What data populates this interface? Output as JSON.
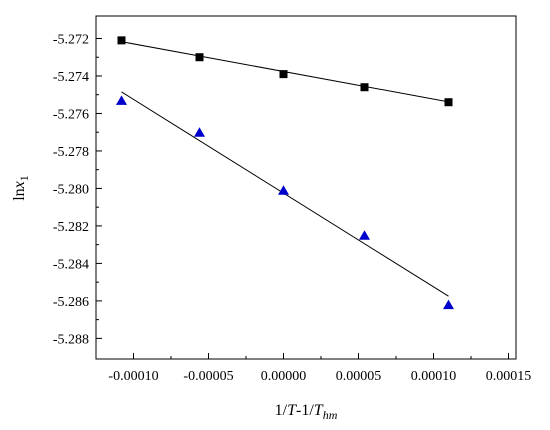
{
  "chart_data": {
    "type": "scatter",
    "xlabel": {
      "prefix": "1/",
      "T1": "T",
      "mid": "-1/",
      "T2": "T",
      "sub": "hm"
    },
    "ylabel": {
      "main": "ln",
      "var": "x",
      "sub": "1"
    },
    "xlim": [
      -0.000125,
      0.000155
    ],
    "ylim": [
      -5.2891,
      -5.2708
    ],
    "x_ticks": [
      -0.0001,
      -5e-05,
      0.0,
      5e-05,
      0.0001,
      0.00015
    ],
    "x_tick_labels": [
      "-0.00010",
      "-0.00005",
      "0.00000",
      "0.00005",
      "0.00010",
      "0.00015"
    ],
    "y_ticks": [
      -5.272,
      -5.274,
      -5.276,
      -5.278,
      -5.28,
      -5.282,
      -5.284,
      -5.286,
      -5.288
    ],
    "y_tick_labels": [
      "-5.272",
      "-5.274",
      "-5.276",
      "-5.278",
      "-5.280",
      "-5.282",
      "-5.284",
      "-5.286",
      "-5.288"
    ],
    "series": [
      {
        "marker": "square",
        "color": "#000000",
        "x": [
          -0.000108,
          -5.6e-05,
          0.0,
          5.4e-05,
          0.00011
        ],
        "y": [
          -5.2721,
          -5.273,
          -5.2739,
          -5.2746,
          -5.2754
        ],
        "fit": [
          [
            -0.000108,
            -5.27217
          ],
          [
            0.00011,
            -5.27538
          ]
        ]
      },
      {
        "marker": "triangle",
        "color": "#0000cc",
        "x": [
          -0.000108,
          -5.6e-05,
          0.0,
          5.4e-05,
          0.00011
        ],
        "y": [
          -5.2753,
          -5.277,
          -5.2801,
          -5.2825,
          -5.2862
        ],
        "fit": [
          [
            -0.000108,
            -5.27485
          ],
          [
            0.00011,
            -5.28575
          ]
        ]
      }
    ],
    "grid": false,
    "legend": "none"
  }
}
